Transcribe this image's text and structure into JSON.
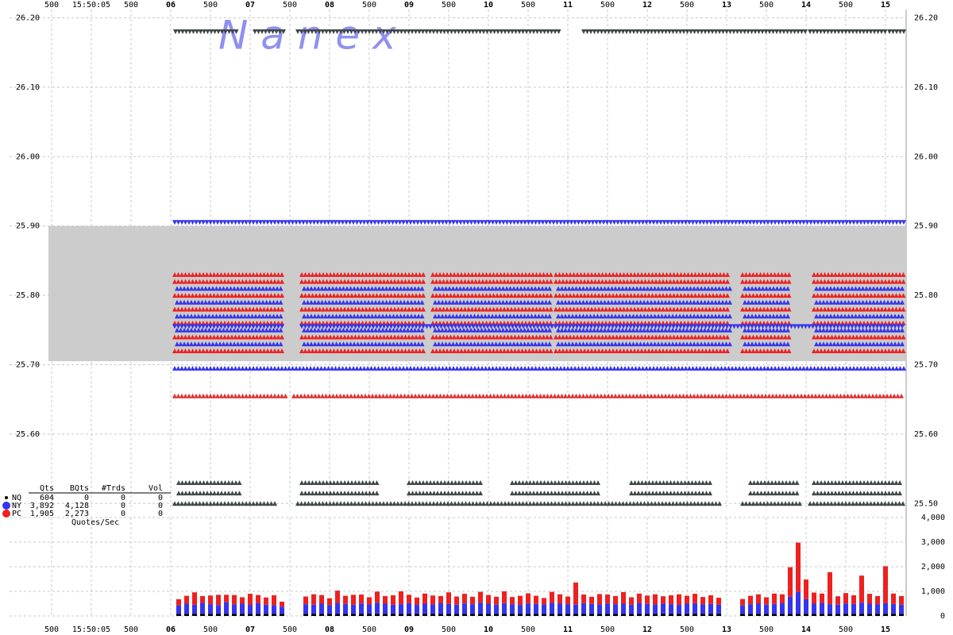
{
  "chart_data": [
    {
      "type": "scatter",
      "watermark": "N a n e x",
      "xlim": [
        3.97,
        15.26
      ],
      "xticks": [
        {
          "value": 4.5,
          "label": "500"
        },
        {
          "value": 5,
          "label": "15:50:05"
        },
        {
          "value": 5.5,
          "label": "500"
        },
        {
          "value": 6,
          "label": "06"
        },
        {
          "value": 6.5,
          "label": "500"
        },
        {
          "value": 7,
          "label": "07"
        },
        {
          "value": 7.5,
          "label": "500"
        },
        {
          "value": 8,
          "label": "08"
        },
        {
          "value": 8.5,
          "label": "500"
        },
        {
          "value": 9,
          "label": "09"
        },
        {
          "value": 9.5,
          "label": "500"
        },
        {
          "value": 10,
          "label": "10"
        },
        {
          "value": 10.5,
          "label": "500"
        },
        {
          "value": 11,
          "label": "11"
        },
        {
          "value": 11.5,
          "label": "500"
        },
        {
          "value": 12,
          "label": "12"
        },
        {
          "value": 12.5,
          "label": "500"
        },
        {
          "value": 13,
          "label": "13"
        },
        {
          "value": 13.5,
          "label": "500"
        },
        {
          "value": 14,
          "label": "14"
        },
        {
          "value": 14.5,
          "label": "500"
        },
        {
          "value": 15,
          "label": "15"
        }
      ],
      "ylim": [
        25.49,
        26.212
      ],
      "yticks": [
        {
          "value": 25.5,
          "label": "25.50"
        },
        {
          "value": 25.6,
          "label": "25.60"
        },
        {
          "value": 25.7,
          "label": "25.70"
        },
        {
          "value": 25.8,
          "label": "25.80"
        },
        {
          "value": 25.9,
          "label": "25.90"
        },
        {
          "value": 26.0,
          "label": "26.00"
        },
        {
          "value": 26.1,
          "label": "26.10"
        },
        {
          "value": 26.2,
          "label": "26.20"
        }
      ],
      "grid": true,
      "nbbo": {
        "x": [
          4.46,
          15.25
        ],
        "bid": 25.705,
        "ask": 25.9,
        "color": "#cccccc"
      },
      "quote_rows": [
        {
          "name": "NQ",
          "color": "#404848",
          "marker": "down",
          "levels": [
            26.18
          ],
          "segments": [
            [
              6.06,
              6.86
            ],
            [
              7.06,
              7.46
            ],
            [
              7.6,
              10.9
            ],
            [
              11.2,
              14.0
            ],
            [
              14.05,
              15.0
            ],
            [
              15.05,
              15.25
            ]
          ]
        },
        {
          "name": "NY",
          "color": "#3535ee",
          "marker": "down",
          "levels": [
            25.905
          ],
          "segments": [
            [
              6.05,
              15.24
            ]
          ]
        },
        {
          "name": "PC",
          "color": "#ee2020",
          "marker": "up",
          "levels": [
            25.72,
            25.74,
            25.76,
            25.78,
            25.8,
            25.82,
            25.83
          ],
          "segments": [
            [
              6.05,
              7.4
            ],
            [
              7.65,
              9.2
            ],
            [
              9.3,
              10.8
            ],
            [
              10.85,
              13.05
            ],
            [
              13.2,
              13.8
            ],
            [
              14.1,
              15.25
            ]
          ]
        },
        {
          "name": "NY",
          "color": "#3535ee",
          "marker": "up",
          "levels": [
            25.73,
            25.75,
            25.77,
            25.79,
            25.81
          ],
          "segments": [
            [
              6.08,
              7.4
            ],
            [
              7.68,
              9.2
            ],
            [
              9.33,
              10.8
            ],
            [
              10.88,
              13.05
            ],
            [
              13.23,
              13.8
            ],
            [
              14.13,
              15.25
            ]
          ]
        },
        {
          "name": "NY",
          "color": "#3535ee",
          "marker": "down",
          "levels": [
            25.755
          ],
          "segments": [
            [
              6.05,
              7.4
            ],
            [
              7.65,
              15.25
            ]
          ]
        },
        {
          "name": "NY",
          "color": "#3535ee",
          "marker": "up",
          "levels": [
            25.695
          ],
          "segments": [
            [
              6.05,
              15.24
            ]
          ]
        },
        {
          "name": "PC",
          "color": "#dd3333",
          "marker": "up",
          "levels": [
            25.655
          ],
          "segments": [
            [
              6.05,
              7.45
            ],
            [
              7.55,
              15.24
            ]
          ]
        },
        {
          "name": "NQ",
          "color": "#404848",
          "marker": "up",
          "levels": [
            25.5
          ],
          "segments": [
            [
              6.05,
              7.35
            ],
            [
              7.6,
              12.95
            ],
            [
              13.2,
              13.95
            ],
            [
              14.05,
              15.25
            ]
          ]
        },
        {
          "name": "NQ",
          "color": "#404848",
          "marker": "up",
          "levels": [
            25.515,
            25.53
          ],
          "segments": [
            [
              6.1,
              6.9
            ],
            [
              7.65,
              8.6
            ],
            [
              9.0,
              9.9
            ],
            [
              10.3,
              11.4
            ],
            [
              11.8,
              12.8
            ],
            [
              13.3,
              13.9
            ],
            [
              14.1,
              15.2
            ]
          ]
        }
      ]
    },
    {
      "type": "bar",
      "xlim": [
        3.97,
        15.26
      ],
      "xticks": [
        {
          "value": 4.5,
          "label": "500"
        },
        {
          "value": 5,
          "label": "15:50:05"
        },
        {
          "value": 5.5,
          "label": "500"
        },
        {
          "value": 6,
          "label": "06"
        },
        {
          "value": 6.5,
          "label": "500"
        },
        {
          "value": 7,
          "label": "07"
        },
        {
          "value": 7.5,
          "label": "500"
        },
        {
          "value": 8,
          "label": "08"
        },
        {
          "value": 8.5,
          "label": "500"
        },
        {
          "value": 9,
          "label": "09"
        },
        {
          "value": 9.5,
          "label": "500"
        },
        {
          "value": 10,
          "label": "10"
        },
        {
          "value": 10.5,
          "label": "500"
        },
        {
          "value": 11,
          "label": "11"
        },
        {
          "value": 11.5,
          "label": "500"
        },
        {
          "value": 12,
          "label": "12"
        },
        {
          "value": 12.5,
          "label": "500"
        },
        {
          "value": 13,
          "label": "13"
        },
        {
          "value": 13.5,
          "label": "500"
        },
        {
          "value": 14,
          "label": "14"
        },
        {
          "value": 14.5,
          "label": "500"
        },
        {
          "value": 15,
          "label": "15"
        }
      ],
      "ylim": [
        0,
        4000
      ],
      "yticks": [
        0,
        {
          "value": 1000,
          "label": "1,000"
        },
        {
          "value": 2000,
          "label": "2,000"
        },
        {
          "value": 3000,
          "label": "3,000"
        },
        {
          "value": 4000,
          "label": "4,000"
        }
      ],
      "grid": true,
      "stacked": true,
      "x": [
        6.1,
        6.2,
        6.3,
        6.4,
        6.5,
        6.6,
        6.7,
        6.8,
        6.9,
        7.0,
        7.1,
        7.2,
        7.3,
        7.4,
        7.5,
        7.6,
        7.7,
        7.8,
        7.9,
        8.0,
        8.1,
        8.2,
        8.3,
        8.4,
        8.5,
        8.6,
        8.7,
        8.8,
        8.9,
        9.0,
        9.1,
        9.2,
        9.3,
        9.4,
        9.5,
        9.6,
        9.7,
        9.8,
        9.9,
        10.0,
        10.1,
        10.2,
        10.3,
        10.4,
        10.5,
        10.6,
        10.7,
        10.8,
        10.9,
        11.0,
        11.1,
        11.2,
        11.3,
        11.4,
        11.5,
        11.6,
        11.7,
        11.8,
        11.9,
        12.0,
        12.1,
        12.2,
        12.3,
        12.4,
        12.5,
        12.6,
        12.7,
        12.8,
        12.9,
        13.0,
        13.1,
        13.2,
        13.3,
        13.4,
        13.5,
        13.6,
        13.7,
        13.8,
        13.9,
        14.0,
        14.1,
        14.2,
        14.3,
        14.4,
        14.5,
        14.6,
        14.7,
        14.8,
        14.9,
        15.0,
        15.1,
        15.2
      ],
      "series": [
        {
          "name": "NQ",
          "color": "#000000",
          "values": [
            80,
            80,
            80,
            80,
            80,
            80,
            80,
            80,
            80,
            80,
            80,
            80,
            80,
            80,
            0,
            0,
            80,
            80,
            80,
            80,
            80,
            80,
            80,
            80,
            80,
            80,
            80,
            80,
            80,
            80,
            80,
            80,
            80,
            80,
            80,
            80,
            80,
            80,
            80,
            80,
            80,
            80,
            80,
            80,
            80,
            80,
            80,
            80,
            80,
            80,
            80,
            80,
            80,
            80,
            80,
            80,
            80,
            80,
            80,
            80,
            80,
            80,
            80,
            80,
            80,
            80,
            80,
            80,
            80,
            0,
            0,
            80,
            80,
            80,
            80,
            80,
            80,
            80,
            80,
            80,
            80,
            80,
            80,
            80,
            80,
            80,
            80,
            80,
            80,
            80,
            80,
            80
          ]
        },
        {
          "name": "NY",
          "color": "#3535ee",
          "values": [
            350,
            420,
            380,
            450,
            400,
            360,
            480,
            390,
            420,
            370,
            440,
            380,
            360,
            300,
            0,
            0,
            400,
            380,
            420,
            360,
            450,
            410,
            380,
            430,
            390,
            460,
            420,
            380,
            400,
            440,
            370,
            420,
            390,
            450,
            410,
            380,
            430,
            400,
            460,
            420,
            380,
            440,
            400,
            370,
            430,
            410,
            390,
            450,
            420,
            400,
            380,
            440,
            410,
            390,
            430,
            400,
            420,
            380,
            450,
            410,
            390,
            430,
            400,
            370,
            420,
            440,
            390,
            410,
            380,
            0,
            0,
            350,
            400,
            420,
            380,
            410,
            450,
            700,
            900,
            600,
            420,
            450,
            400,
            380,
            430,
            410,
            460,
            420,
            400,
            440,
            410,
            380
          ]
        },
        {
          "name": "PC",
          "color": "#ee2020",
          "values": [
            250,
            320,
            500,
            280,
            350,
            420,
            300,
            380,
            260,
            450,
            330,
            290,
            400,
            200,
            0,
            0,
            310,
            420,
            350,
            280,
            500,
            330,
            400,
            360,
            290,
            450,
            310,
            380,
            520,
            340,
            300,
            410,
            360,
            280,
            470,
            330,
            390,
            300,
            440,
            350,
            320,
            480,
            290,
            370,
            410,
            330,
            260,
            450,
            380,
            310,
            900,
            350,
            290,
            420,
            360,
            330,
            470,
            300,
            380,
            340,
            410,
            290,
            360,
            430,
            320,
            380,
            300,
            350,
            280,
            0,
            0,
            260,
            340,
            380,
            300,
            420,
            350,
            1200,
            2000,
            800,
            450,
            380,
            1300,
            340,
            420,
            350,
            1100,
            400,
            330,
            1500,
            420,
            350
          ]
        }
      ],
      "stats": {
        "columns": [
          "Qts",
          "BQts",
          "#Trds",
          "Vol"
        ],
        "rows": [
          {
            "name": "NQ",
            "color": "#000000",
            "cells": [
              "604",
              "0",
              "0",
              "0"
            ]
          },
          {
            "name": "NY",
            "color": "#3535ee",
            "cells": [
              "3,892",
              "4,128",
              "0",
              "0"
            ]
          },
          {
            "name": "PC",
            "color": "#ee2020",
            "cells": [
              "1,905",
              "2,273",
              "0",
              "0"
            ]
          }
        ],
        "caption": "Quotes/Sec"
      }
    }
  ]
}
